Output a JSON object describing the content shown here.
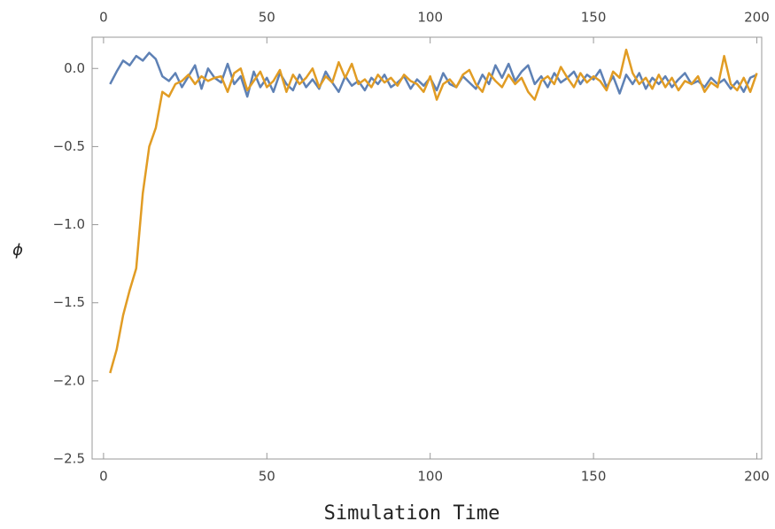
{
  "chart_data": {
    "type": "line",
    "x_label": "Simulation Time",
    "y_label": "ϕ",
    "x": [
      2,
      4,
      6,
      8,
      10,
      12,
      14,
      16,
      18,
      20,
      22,
      24,
      26,
      28,
      30,
      32,
      34,
      36,
      38,
      40,
      42,
      44,
      46,
      48,
      50,
      52,
      54,
      56,
      58,
      60,
      62,
      64,
      66,
      68,
      70,
      72,
      74,
      76,
      78,
      80,
      82,
      84,
      86,
      88,
      90,
      92,
      94,
      96,
      98,
      100,
      102,
      104,
      106,
      108,
      110,
      112,
      114,
      116,
      118,
      120,
      122,
      124,
      126,
      128,
      130,
      132,
      134,
      136,
      138,
      140,
      142,
      144,
      146,
      148,
      150,
      152,
      154,
      156,
      158,
      160,
      162,
      164,
      166,
      168,
      170,
      172,
      174,
      176,
      178,
      180,
      182,
      184,
      186,
      188,
      190,
      192,
      194,
      196,
      198,
      200
    ],
    "series": [
      {
        "color": "#5e81b5",
        "values": [
          -0.1,
          -0.02,
          0.05,
          0.02,
          0.08,
          0.05,
          0.1,
          0.06,
          -0.05,
          -0.08,
          -0.03,
          -0.12,
          -0.05,
          0.02,
          -0.13,
          0.0,
          -0.06,
          -0.09,
          0.03,
          -0.1,
          -0.05,
          -0.18,
          -0.02,
          -0.12,
          -0.06,
          -0.15,
          -0.03,
          -0.1,
          -0.14,
          -0.04,
          -0.12,
          -0.07,
          -0.13,
          -0.02,
          -0.09,
          -0.15,
          -0.05,
          -0.11,
          -0.08,
          -0.14,
          -0.06,
          -0.1,
          -0.04,
          -0.12,
          -0.09,
          -0.05,
          -0.13,
          -0.07,
          -0.11,
          -0.06,
          -0.14,
          -0.03,
          -0.1,
          -0.12,
          -0.05,
          -0.09,
          -0.13,
          -0.04,
          -0.1,
          0.02,
          -0.06,
          0.03,
          -0.08,
          -0.02,
          0.02,
          -0.1,
          -0.05,
          -0.12,
          -0.03,
          -0.09,
          -0.06,
          -0.02,
          -0.1,
          -0.04,
          -0.07,
          -0.01,
          -0.12,
          -0.05,
          -0.16,
          -0.04,
          -0.1,
          -0.03,
          -0.13,
          -0.06,
          -0.1,
          -0.05,
          -0.12,
          -0.07,
          -0.03,
          -0.1,
          -0.08,
          -0.12,
          -0.06,
          -0.1,
          -0.07,
          -0.13,
          -0.08,
          -0.15,
          -0.06,
          -0.04
        ]
      },
      {
        "color": "#e19c24",
        "values": [
          -1.95,
          -1.8,
          -1.58,
          -1.42,
          -1.28,
          -0.8,
          -0.5,
          -0.38,
          -0.15,
          -0.18,
          -0.1,
          -0.08,
          -0.04,
          -0.1,
          -0.05,
          -0.08,
          -0.06,
          -0.05,
          -0.15,
          -0.03,
          0.0,
          -0.14,
          -0.08,
          -0.02,
          -0.12,
          -0.08,
          -0.01,
          -0.15,
          -0.04,
          -0.1,
          -0.06,
          0.0,
          -0.12,
          -0.05,
          -0.09,
          0.04,
          -0.06,
          0.03,
          -0.1,
          -0.07,
          -0.12,
          -0.04,
          -0.09,
          -0.06,
          -0.11,
          -0.04,
          -0.08,
          -0.1,
          -0.15,
          -0.05,
          -0.2,
          -0.1,
          -0.07,
          -0.12,
          -0.04,
          -0.01,
          -0.1,
          -0.15,
          -0.03,
          -0.08,
          -0.12,
          -0.04,
          -0.1,
          -0.06,
          -0.15,
          -0.2,
          -0.08,
          -0.05,
          -0.1,
          0.01,
          -0.06,
          -0.12,
          -0.03,
          -0.09,
          -0.05,
          -0.08,
          -0.14,
          -0.02,
          -0.06,
          0.12,
          -0.03,
          -0.1,
          -0.06,
          -0.13,
          -0.04,
          -0.12,
          -0.06,
          -0.14,
          -0.08,
          -0.1,
          -0.05,
          -0.15,
          -0.09,
          -0.12,
          0.08,
          -0.1,
          -0.14,
          -0.06,
          -0.15,
          -0.03
        ]
      }
    ],
    "xlim": [
      -3.5,
      201.5
    ],
    "ylim": [
      -2.5,
      0.2
    ],
    "xticks": [
      0,
      50,
      100,
      150,
      200
    ],
    "yticks": [
      {
        "value": -2.5,
        "label": "−2.5"
      },
      {
        "value": -2.0,
        "label": "−2.0"
      },
      {
        "value": -1.5,
        "label": "−1.5"
      },
      {
        "value": -1.0,
        "label": "−1.0"
      },
      {
        "value": -0.5,
        "label": "−0.5"
      },
      {
        "value": 0,
        "label": "0.0"
      }
    ]
  }
}
